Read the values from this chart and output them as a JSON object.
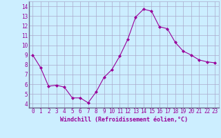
{
  "x": [
    0,
    1,
    2,
    3,
    4,
    5,
    6,
    7,
    8,
    9,
    10,
    11,
    12,
    13,
    14,
    15,
    16,
    17,
    18,
    19,
    20,
    21,
    22,
    23
  ],
  "y": [
    9,
    7.7,
    5.8,
    5.9,
    5.7,
    4.6,
    4.6,
    4.1,
    5.2,
    6.7,
    7.5,
    8.9,
    10.6,
    12.9,
    13.7,
    13.5,
    11.9,
    11.7,
    10.3,
    9.4,
    9.0,
    8.5,
    8.3,
    8.2
  ],
  "line_color": "#990099",
  "marker": "D",
  "marker_size": 2,
  "bg_color": "#cceeff",
  "grid_color": "#aaaacc",
  "xlabel": "Windchill (Refroidissement éolien,°C)",
  "xlabel_color": "#990099",
  "tick_color": "#990099",
  "ylim": [
    3.6,
    14.5
  ],
  "xlim": [
    -0.5,
    23.5
  ],
  "yticks": [
    4,
    5,
    6,
    7,
    8,
    9,
    10,
    11,
    12,
    13,
    14
  ],
  "xticks": [
    0,
    1,
    2,
    3,
    4,
    5,
    6,
    7,
    8,
    9,
    10,
    11,
    12,
    13,
    14,
    15,
    16,
    17,
    18,
    19,
    20,
    21,
    22,
    23
  ],
  "tick_fontsize": 5.5,
  "xlabel_fontsize": 6.0
}
